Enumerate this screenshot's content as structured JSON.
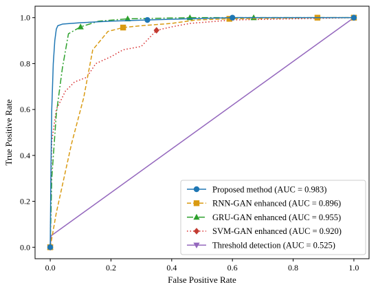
{
  "chart_data": {
    "type": "line",
    "title": "",
    "xlabel": "False Positive Rate",
    "ylabel": "True Positive Rate",
    "xlim": [
      -0.05,
      1.05
    ],
    "ylim": [
      -0.05,
      1.05
    ],
    "xticks": [
      0.0,
      0.2,
      0.4,
      0.6,
      0.8,
      1.0
    ],
    "yticks": [
      0.0,
      0.2,
      0.4,
      0.6,
      0.8,
      1.0
    ],
    "xtick_labels": [
      "0.0",
      "0.2",
      "0.4",
      "0.6",
      "0.8",
      "1.0"
    ],
    "ytick_labels": [
      "0.0",
      "0.2",
      "0.4",
      "0.6",
      "0.8",
      "1.0"
    ],
    "grid": false,
    "legend_position": "bottom-right",
    "series": [
      {
        "name": "Proposed method (AUC = 0.983)",
        "color": "#1f77b4",
        "dash": "solid",
        "marker": "circle",
        "x": [
          0.0,
          0.002,
          0.005,
          0.01,
          0.015,
          0.02,
          0.025,
          0.04,
          0.1,
          0.2,
          0.32,
          0.45,
          0.6,
          1.0
        ],
        "y": [
          0.0,
          0.3,
          0.6,
          0.8,
          0.9,
          0.95,
          0.965,
          0.972,
          0.978,
          0.985,
          0.99,
          0.995,
          1.0,
          1.0
        ],
        "marker_indices": [
          0,
          10,
          12,
          13
        ]
      },
      {
        "name": "RNN-GAN enhanced (AUC = 0.896)",
        "color": "#d99a12",
        "dash": "6,3",
        "marker": "square",
        "x": [
          0.0,
          0.02,
          0.07,
          0.11,
          0.14,
          0.19,
          0.24,
          0.3,
          0.4,
          0.48,
          0.59,
          0.88,
          1.0
        ],
        "y": [
          0.0,
          0.15,
          0.45,
          0.65,
          0.86,
          0.94,
          0.957,
          0.965,
          0.975,
          0.99,
          0.995,
          1.0,
          1.0
        ],
        "marker_indices": [
          0,
          6,
          10,
          11,
          12
        ]
      },
      {
        "name": "GRU-GAN enhanced (AUC = 0.955)",
        "color": "#2ca02c",
        "dash": "9,3,2,3",
        "marker": "triangle",
        "x": [
          0.0,
          0.005,
          0.02,
          0.04,
          0.06,
          0.1,
          0.16,
          0.255,
          0.46,
          0.67,
          1.0
        ],
        "y": [
          0.0,
          0.3,
          0.58,
          0.78,
          0.93,
          0.96,
          0.985,
          0.995,
          1.0,
          1.0,
          1.0
        ],
        "marker_indices": [
          0,
          5,
          7,
          8,
          9,
          10
        ]
      },
      {
        "name": "SVM-GAN enhanced (AUC = 0.920)",
        "color": "#d62728",
        "dash": "1.5,3",
        "marker": "diamond",
        "marker_color": "#c23b31",
        "x": [
          0.0,
          0.005,
          0.02,
          0.05,
          0.08,
          0.12,
          0.15,
          0.2,
          0.24,
          0.3,
          0.35,
          0.4,
          0.46,
          0.6,
          1.0
        ],
        "y": [
          0.0,
          0.46,
          0.6,
          0.68,
          0.72,
          0.74,
          0.8,
          0.83,
          0.86,
          0.875,
          0.945,
          0.96,
          0.975,
          0.99,
          1.0
        ],
        "marker_indices": [
          0,
          10
        ]
      },
      {
        "name": "Threshold detection (AUC = 0.525)",
        "color": "#9467bd",
        "dash": "solid",
        "marker": "triangle-down",
        "x": [
          0.0,
          0.003,
          1.0
        ],
        "y": [
          0.0,
          0.05,
          1.0
        ],
        "marker_indices": [
          0,
          2
        ]
      }
    ]
  }
}
